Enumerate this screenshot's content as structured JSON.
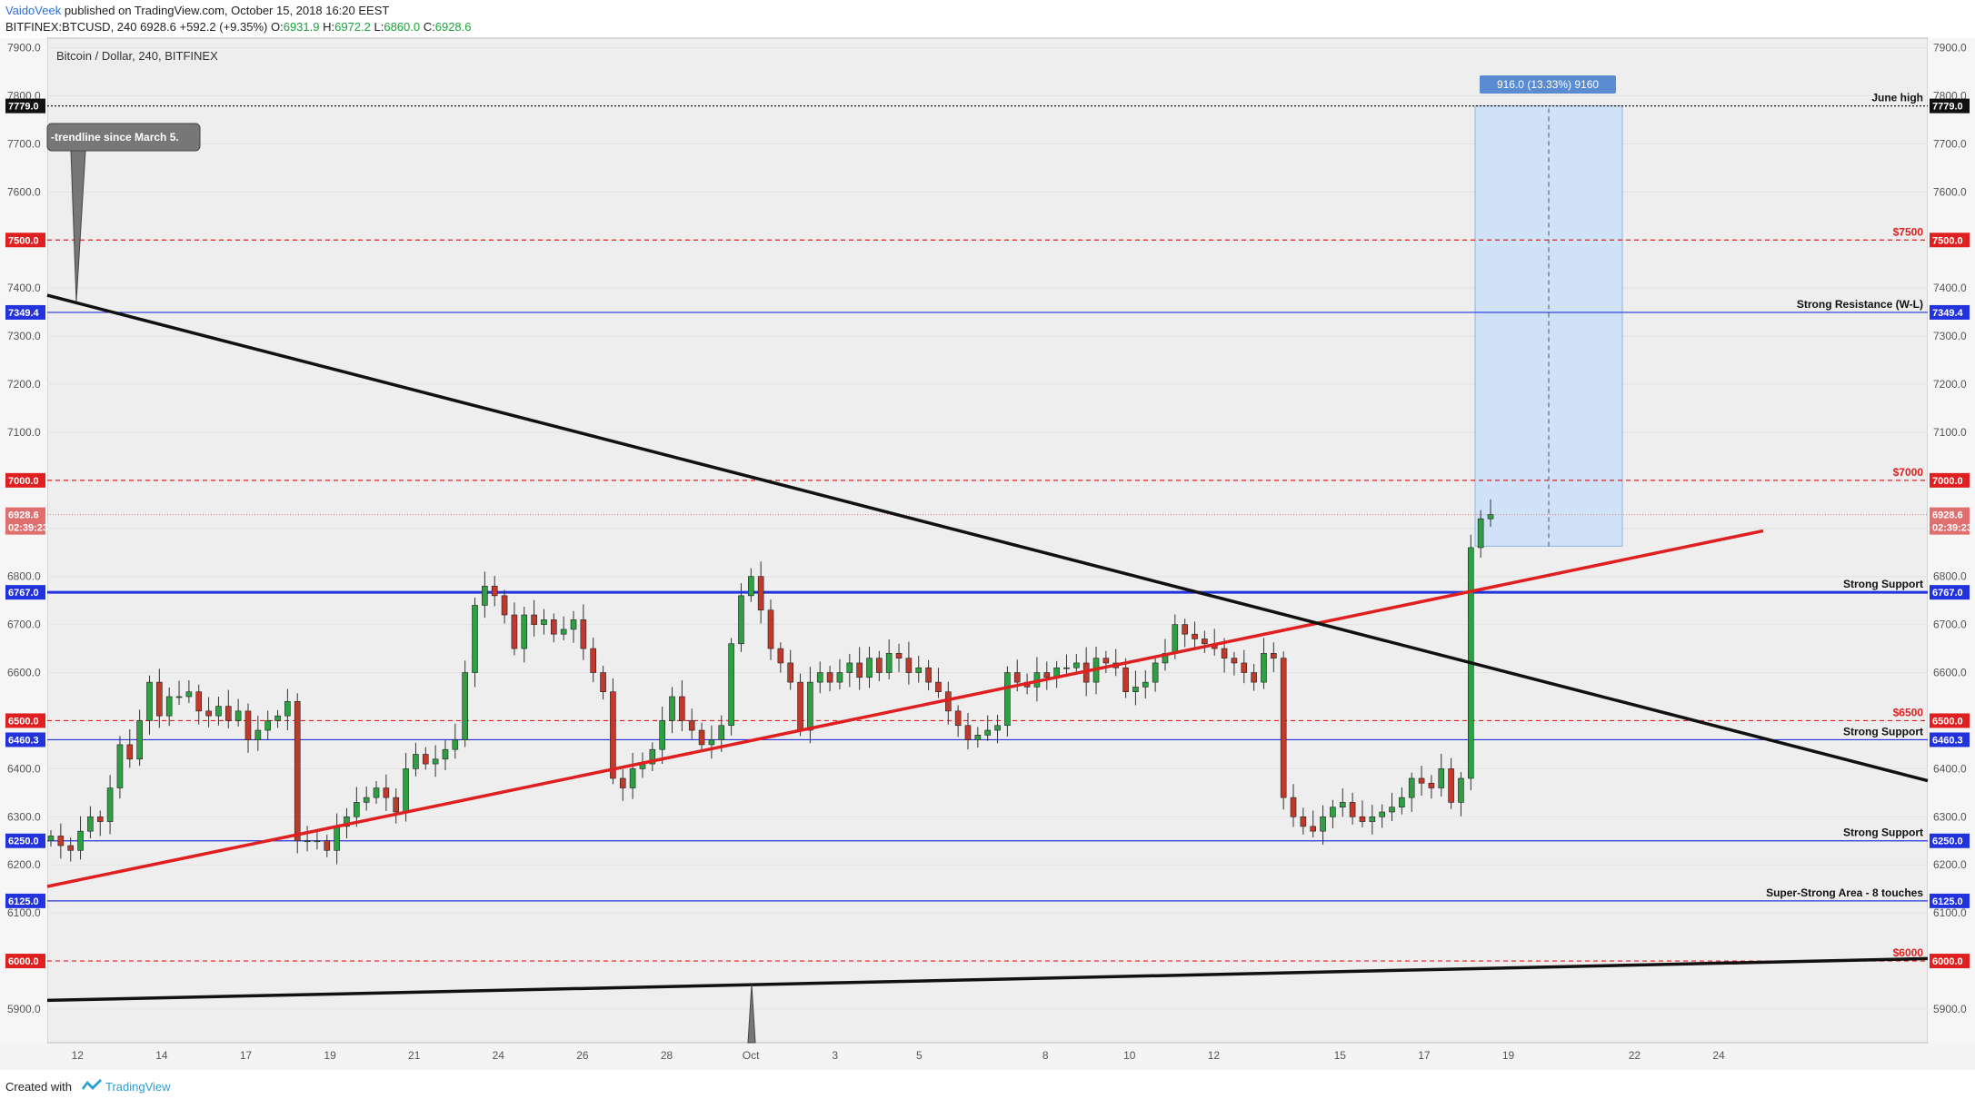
{
  "header": {
    "author": "VaidoVeek",
    "published": "published on TradingView.com, October 15, 2018 16:20 EEST",
    "symbol": "BITFINEX:BTCUSD, 240",
    "last": "6928.6",
    "change": "+592.2 (+9.35%)",
    "o_label": "O:",
    "o": "6931.9",
    "h_label": "H:",
    "h": "6972.2",
    "l_label": "L:",
    "l": "6860.0",
    "c_label": "C:",
    "c": "6928.6"
  },
  "footer": {
    "created": "Created with",
    "brand": "TradingView"
  },
  "colors": {
    "bull": "#2ea043",
    "bear": "#c0392b",
    "red_line": "#e02020",
    "blue_line": "#2233dd",
    "black_line": "#111111",
    "measure_fill": "#cfe2f7"
  },
  "chart_data": {
    "type": "candlestick",
    "title": "Bitcoin / Dollar, 240, BITFINEX",
    "ylim": [
      5830,
      7920
    ],
    "y_ticks": [
      "7900.0",
      "7800.0",
      "7700.0",
      "7600.0",
      "7500.0",
      "7400.0",
      "7300.0",
      "7200.0",
      "7100.0",
      "7000.0",
      "6900.0",
      "6800.0",
      "6700.0",
      "6600.0",
      "6500.0",
      "6400.0",
      "6300.0",
      "6200.0",
      "6100.0",
      "6000.0",
      "5900.0"
    ],
    "x_ticks": [
      "12",
      "14",
      "17",
      "19",
      "21",
      "24",
      "26",
      "28",
      "Oct",
      "3",
      "5",
      "8",
      "10",
      "12",
      "15",
      "17",
      "19",
      "22",
      "24"
    ],
    "x_tick_positions": [
      1,
      3,
      5,
      7,
      9,
      11,
      13,
      15,
      17,
      19,
      21,
      24,
      26,
      28,
      31,
      33,
      35,
      38,
      40
    ],
    "candles_close": [
      6260,
      6240,
      6230,
      6270,
      6300,
      6290,
      6360,
      6450,
      6420,
      6500,
      6580,
      6510,
      6550,
      6550,
      6560,
      6520,
      6510,
      6530,
      6500,
      6520,
      6460,
      6480,
      6500,
      6510,
      6540,
      6250,
      6250,
      6250,
      6230,
      6280,
      6300,
      6330,
      6340,
      6360,
      6340,
      6310,
      6400,
      6430,
      6410,
      6420,
      6440,
      6460,
      6600,
      6740,
      6780,
      6760,
      6720,
      6650,
      6720,
      6700,
      6710,
      6680,
      6690,
      6710,
      6650,
      6600,
      6560,
      6380,
      6360,
      6400,
      6410,
      6440,
      6500,
      6550,
      6500,
      6480,
      6450,
      6460,
      6490,
      6660,
      6760,
      6800,
      6730,
      6650,
      6620,
      6580,
      6480,
      6580,
      6600,
      6580,
      6600,
      6620,
      6590,
      6630,
      6600,
      6640,
      6630,
      6600,
      6610,
      6580,
      6560,
      6520,
      6490,
      6460,
      6470,
      6480,
      6490,
      6600,
      6580,
      6570,
      6600,
      6590,
      6610,
      6610,
      6620,
      6580,
      6630,
      6620,
      6610,
      6560,
      6570,
      6580,
      6620,
      6640,
      6700,
      6680,
      6670,
      6660,
      6650,
      6630,
      6620,
      6600,
      6580,
      6640,
      6630,
      6340,
      6300,
      6280,
      6270,
      6300,
      6320,
      6330,
      6300,
      6290,
      6300,
      6310,
      6320,
      6340,
      6380,
      6370,
      6360,
      6400,
      6330,
      6380,
      6860,
      6920,
      6928.6
    ],
    "annotations": {
      "levels": [
        {
          "value": 7779.0,
          "label": "June high",
          "axis": "7779.0",
          "color": "#111111",
          "style": "dotted"
        },
        {
          "value": 7500.0,
          "label": "$7500",
          "axis": "7500.0",
          "color": "#e02020",
          "style": "dashed"
        },
        {
          "value": 7349.4,
          "label": "Strong Resistance (W-L)",
          "axis": "7349.4",
          "color": "#2233dd",
          "style": "solid"
        },
        {
          "value": 7000.0,
          "label": "$7000",
          "axis": "7000.0",
          "color": "#e02020",
          "style": "dashed"
        },
        {
          "value": 6767.0,
          "label": "Strong Support",
          "axis": "6767.0",
          "color": "#2233dd",
          "style": "thick"
        },
        {
          "value": 6500.0,
          "label": "$6500",
          "axis": "6500.0",
          "color": "#e02020",
          "style": "dashed"
        },
        {
          "value": 6460.3,
          "label": "Strong Support",
          "axis": "6460.3",
          "color": "#2233dd",
          "style": "solid"
        },
        {
          "value": 6250.0,
          "label": "Strong Support",
          "axis": "6250.0",
          "color": "#2233dd",
          "style": "solid"
        },
        {
          "value": 6125.0,
          "label": "Super-Strong Area - 8 touches",
          "axis": "6125.0",
          "color": "#2233dd",
          "style": "solid"
        },
        {
          "value": 6000.0,
          "label": "$6000",
          "axis": "6000.0",
          "color": "#e02020",
          "style": "dashed"
        }
      ],
      "current_price": "6928.6",
      "countdown": "02:39:23",
      "measure_label": "916.0 (13.33%) 9160",
      "callout_text": "-trendline since March 5."
    }
  }
}
